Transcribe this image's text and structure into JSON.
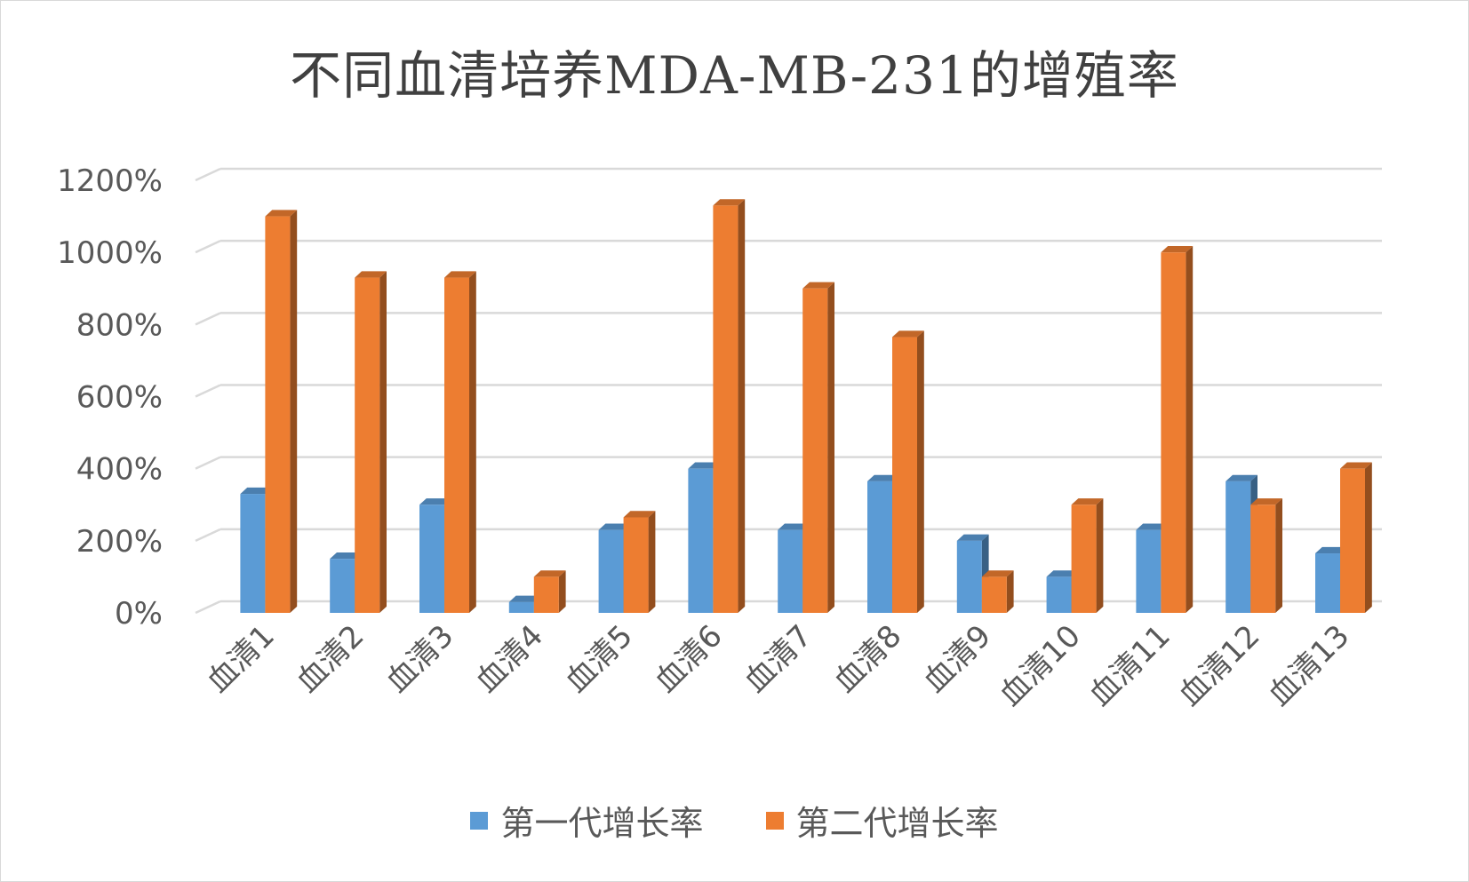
{
  "chart_data": {
    "type": "bar",
    "title": "不同血清培养MDA-MB-231的增殖率",
    "xlabel": "",
    "ylabel": "",
    "categories": [
      "血清1",
      "血清2",
      "血清3",
      "血清4",
      "血清5",
      "血清6",
      "血清7",
      "血清8",
      "血清9",
      "血清10",
      "血清11",
      "血清12",
      "血清13"
    ],
    "series": [
      {
        "name": "第一代增长率",
        "color": "#5b9bd5",
        "values": [
          330,
          150,
          300,
          30,
          230,
          400,
          230,
          365,
          200,
          100,
          230,
          365,
          165
        ]
      },
      {
        "name": "第二代增长率",
        "color": "#ed7d31",
        "values": [
          1100,
          930,
          930,
          100,
          265,
          1130,
          900,
          765,
          100,
          300,
          1000,
          300,
          400
        ]
      }
    ],
    "ylim": [
      0,
      1200
    ],
    "yticks": [
      "0%",
      "200%",
      "400%",
      "600%",
      "800%",
      "1000%",
      "1200%"
    ],
    "grid": true,
    "legend_position": "bottom",
    "style": "3d-clustered-column"
  }
}
